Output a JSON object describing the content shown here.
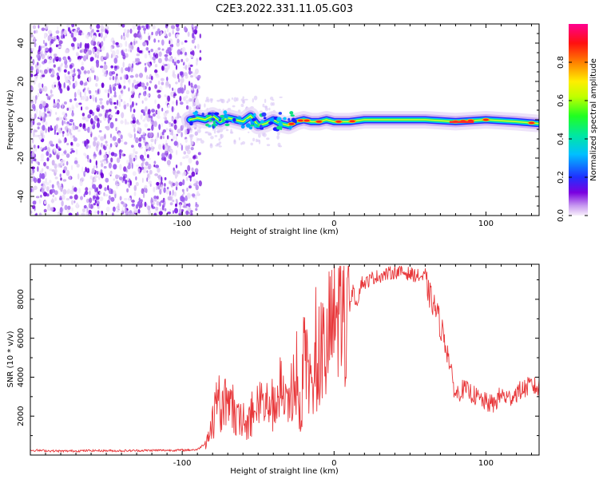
{
  "title": "C2E3.2022.331.11.05.G03",
  "chart_data": [
    {
      "type": "heatmap",
      "xlabel": "Height of straight line (km)",
      "ylabel": "Frequency (Hz)",
      "xlim": [
        -200,
        135
      ],
      "ylim": [
        -50,
        50
      ],
      "xticks": [
        -100,
        0,
        100
      ],
      "yticks": [
        -40,
        -20,
        0,
        20,
        40
      ],
      "colorbar": {
        "label": "Normalized spectral amplitude",
        "range": [
          0,
          1
        ],
        "ticks": [
          "0.0",
          "0.2",
          "0.4",
          "0.6",
          "0.8"
        ]
      },
      "noise_region_x": [
        -200,
        -90
      ],
      "centerline": {
        "x": [
          -95,
          -90,
          -85,
          -80,
          -75,
          -70,
          -65,
          -60,
          -55,
          -50,
          -45,
          -40,
          -35,
          -30,
          -25,
          -20,
          -15,
          -10,
          -5,
          0,
          10,
          20,
          40,
          60,
          80,
          100,
          120,
          135
        ],
        "freq": [
          0,
          1,
          0,
          2,
          -1,
          1,
          0,
          -1,
          2,
          -3,
          -2,
          0,
          -2,
          -3,
          -1,
          0,
          -1,
          -1,
          0,
          -1,
          -1,
          0,
          0,
          0,
          -1,
          0,
          -1,
          -2
        ]
      },
      "peaks_x": [
        -28,
        -22,
        -18,
        -10,
        3,
        12,
        80,
        85,
        90,
        100,
        130
      ]
    },
    {
      "type": "line",
      "xlabel": "Height of straight line (km)",
      "ylabel": "SNR (10 * v/v)",
      "xlim": [
        -200,
        135
      ],
      "ylim": [
        0,
        9800
      ],
      "xticks": [
        -100,
        0,
        100
      ],
      "yticks": [
        2000,
        4000,
        6000,
        8000
      ],
      "series": [
        {
          "color": "#e8373a",
          "x": [
            -200,
            -180,
            -160,
            -140,
            -120,
            -100,
            -90,
            -85,
            -80,
            -77,
            -75,
            -72,
            -70,
            -68,
            -65,
            -62,
            -60,
            -58,
            -55,
            -52,
            -50,
            -48,
            -45,
            -42,
            -40,
            -38,
            -35,
            -33,
            -30,
            -28,
            -25,
            -22,
            -20,
            -18,
            -15,
            -12,
            -10,
            -8,
            -5,
            -3,
            0,
            3,
            5,
            8,
            10,
            12,
            15,
            18,
            20,
            25,
            30,
            35,
            40,
            45,
            50,
            55,
            60,
            62,
            65,
            68,
            70,
            72,
            75,
            78,
            80,
            85,
            90,
            95,
            100,
            105,
            110,
            115,
            120,
            125,
            130,
            135
          ],
          "y": [
            250,
            200,
            230,
            220,
            240,
            250,
            280,
            600,
            1500,
            2600,
            2200,
            2800,
            2100,
            2500,
            1800,
            1700,
            2200,
            1500,
            2000,
            1800,
            2600,
            2800,
            2400,
            3000,
            2300,
            2800,
            3400,
            2600,
            2200,
            3500,
            3800,
            1600,
            4500,
            4200,
            3200,
            5000,
            4200,
            5600,
            4800,
            6500,
            6500,
            7500,
            6800,
            5800,
            7500,
            8500,
            7800,
            8900,
            8800,
            9100,
            9200,
            9300,
            9400,
            9400,
            9300,
            9200,
            9100,
            8400,
            7800,
            7300,
            6600,
            6200,
            5200,
            3800,
            3100,
            3400,
            3200,
            2900,
            2700,
            2600,
            3100,
            2900,
            3200,
            3400,
            3600,
            3400
          ]
        }
      ]
    }
  ]
}
